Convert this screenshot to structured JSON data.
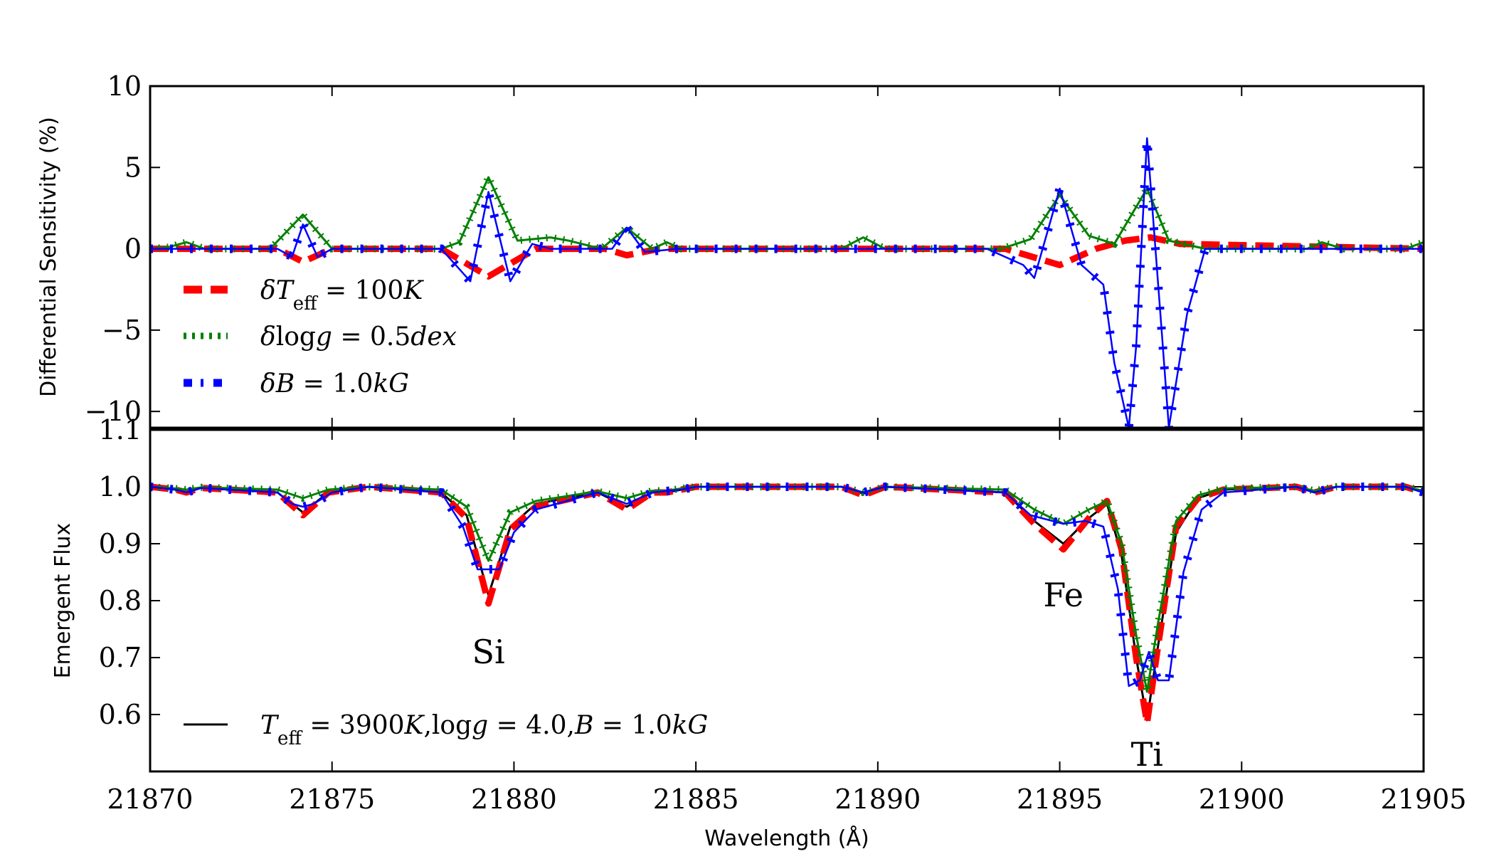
{
  "chart_data": [
    {
      "type": "line",
      "panel": "top",
      "ylabel": "Differential Sensitivity (%)",
      "xlim": [
        21870,
        21905
      ],
      "ylim": [
        -11,
        10
      ],
      "yticks": [
        10,
        5,
        0,
        -5,
        -10
      ],
      "yticklabels": [
        "10",
        "5",
        "0",
        "−5",
        "−10"
      ],
      "legend_position": "lower-left",
      "series": [
        {
          "name": "δT_eff = 100K",
          "label_parts": [
            "δ",
            "T",
            "eff",
            " = 100",
            "K"
          ],
          "color": "#ff0000",
          "style": "dashed-thick",
          "x": [
            21870,
            21873.5,
            21874.2,
            21875,
            21878,
            21879.3,
            21880.6,
            21882.5,
            21883.1,
            21884,
            21893.5,
            21895,
            21896,
            21896.8,
            21897.5,
            21898.3,
            21905
          ],
          "y": [
            0,
            0,
            -0.8,
            0,
            0,
            -1.7,
            0,
            0,
            -0.4,
            0,
            0,
            -1.0,
            0,
            0.5,
            0.7,
            0.3,
            0
          ]
        },
        {
          "name": "δlogg = 0.5dex",
          "label_parts": [
            "δ",
            "log",
            "g",
            " = 0.5",
            "dex"
          ],
          "color": "#008000",
          "style": "dotted",
          "x": [
            21870,
            21870.5,
            21871,
            21871.5,
            21873.3,
            21874.2,
            21875,
            21876,
            21878,
            21878.5,
            21879.3,
            21880.1,
            21881,
            21881.5,
            21882.4,
            21883.1,
            21883.8,
            21884.2,
            21884.6,
            21885,
            21889,
            21889.6,
            21890.2,
            21892.5,
            21893.4,
            21894.2,
            21895,
            21895.8,
            21896.5,
            21897.4,
            21898,
            21899,
            21901.8,
            21902.2,
            21902.8,
            21904.5,
            21905
          ],
          "y": [
            0,
            0.1,
            0.4,
            0,
            0,
            2.1,
            0,
            0,
            0,
            0.4,
            4.4,
            0.5,
            0.7,
            0.5,
            0,
            1.3,
            0,
            0.4,
            0,
            0,
            0,
            0.7,
            0,
            0,
            0,
            0.6,
            3.3,
            0.8,
            0.3,
            3.7,
            0.5,
            0,
            0,
            0.4,
            0,
            0,
            0.4
          ]
        },
        {
          "name": "δB = 1.0kG",
          "label_parts": [
            "δ",
            "B",
            " = 1.0",
            "kG"
          ],
          "color": "#0000ff",
          "style": "dash-dot-markers",
          "x": [
            21870,
            21873.5,
            21873.9,
            21874.2,
            21874.6,
            21875,
            21878,
            21878.8,
            21879.3,
            21879.9,
            21880.5,
            21881,
            21882.7,
            21883.1,
            21883.6,
            21884.5,
            21893,
            21894,
            21894.3,
            21895,
            21895.6,
            21896.2,
            21896.5,
            21896.9,
            21897.1,
            21897.4,
            21897.8,
            21898,
            21898.5,
            21899,
            21905
          ],
          "y": [
            0,
            0,
            -0.5,
            1.5,
            -0.5,
            0,
            0,
            -2.0,
            3.5,
            -2.0,
            0.3,
            0,
            0,
            1.3,
            -0.2,
            0,
            0,
            -1.0,
            -1.8,
            3.7,
            -1.0,
            -2.2,
            -7,
            -11,
            -6,
            6.8,
            -5,
            -11,
            -4,
            0,
            0
          ]
        }
      ]
    },
    {
      "type": "line",
      "panel": "bottom",
      "ylabel": "Emergent Flux",
      "xlabel": "Wavelength (Å)",
      "xlim": [
        21870,
        21905
      ],
      "ylim": [
        0.5,
        1.1
      ],
      "xticks": [
        21870,
        21875,
        21880,
        21885,
        21890,
        21895,
        21900,
        21905
      ],
      "xticklabels": [
        "21870",
        "21875",
        "21880",
        "21885",
        "21890",
        "21895",
        "21900",
        "21905"
      ],
      "yticks": [
        1.1,
        1.0,
        0.9,
        0.8,
        0.7,
        0.6
      ],
      "yticklabels": [
        "1.1",
        "1.0",
        "0.9",
        "0.8",
        "0.7",
        "0.6"
      ],
      "legend_position": "lower-left",
      "annotations": [
        {
          "text": "Si",
          "x": 21879.3,
          "y": 0.69
        },
        {
          "text": "Fe",
          "x": 21895.1,
          "y": 0.79
        },
        {
          "text": "Ti",
          "x": 21897.4,
          "y": 0.51
        }
      ],
      "series": [
        {
          "name": "T_eff = 3900K, logg = 4.0, B = 1.0kG",
          "label_parts": [
            "T",
            "eff",
            " = 3900",
            "K",
            ",log",
            "g",
            " = 4.0,",
            "B",
            " = 1.0",
            "kG"
          ],
          "color": "#000000",
          "style": "solid",
          "x": [
            21870,
            21870.7,
            21871,
            21871.4,
            21873.5,
            21874.2,
            21874.9,
            21876,
            21878,
            21878.7,
            21879.3,
            21879.9,
            21880.6,
            21882.3,
            21883.1,
            21883.8,
            21884.2,
            21884.6,
            21885,
            21889,
            21889.6,
            21890.2,
            21893.5,
            21894.3,
            21895.1,
            21895.8,
            21896.3,
            21896.7,
            21897.1,
            21897.4,
            21897.7,
            21898.2,
            21898.8,
            21899.5,
            21901.5,
            21902,
            21902.6,
            21904.5,
            21905
          ],
          "y": [
            1.0,
            0.995,
            0.99,
            0.998,
            0.99,
            0.955,
            0.99,
            1.0,
            0.99,
            0.95,
            0.81,
            0.93,
            0.97,
            0.99,
            0.965,
            0.99,
            0.99,
            0.995,
            1.0,
            1.0,
            0.988,
            1.0,
            0.99,
            0.94,
            0.9,
            0.945,
            0.97,
            0.88,
            0.7,
            0.59,
            0.72,
            0.92,
            0.98,
            0.995,
            1.0,
            0.99,
            1.0,
            1.0,
            0.99
          ]
        },
        {
          "name": "δT_eff = 100K",
          "color": "#ff0000",
          "style": "dashed-thick",
          "x": [
            21870,
            21870.7,
            21871,
            21871.4,
            21873.5,
            21874.2,
            21874.9,
            21876,
            21878,
            21878.7,
            21879.3,
            21879.9,
            21880.6,
            21882.3,
            21883.1,
            21883.8,
            21884.2,
            21884.6,
            21885,
            21889,
            21889.6,
            21890.2,
            21893.5,
            21894.3,
            21895.1,
            21895.8,
            21896.3,
            21896.7,
            21897.1,
            21897.4,
            21897.7,
            21898.2,
            21898.8,
            21899.5,
            21901.5,
            21902,
            21902.6,
            21904.5,
            21905
          ],
          "y": [
            1.0,
            0.995,
            0.99,
            0.998,
            0.99,
            0.95,
            0.99,
            1.0,
            0.99,
            0.945,
            0.795,
            0.925,
            0.965,
            0.99,
            0.96,
            0.99,
            0.99,
            0.995,
            1.0,
            1.0,
            0.985,
            1.0,
            0.99,
            0.935,
            0.89,
            0.945,
            0.975,
            0.89,
            0.7,
            0.585,
            0.72,
            0.93,
            0.98,
            0.995,
            1.0,
            0.99,
            1.0,
            1.0,
            0.99
          ]
        },
        {
          "name": "δlogg = 0.5dex",
          "color": "#008000",
          "style": "dotted",
          "x": [
            21870,
            21870.7,
            21871,
            21871.4,
            21873.5,
            21874.2,
            21874.9,
            21876,
            21878,
            21878.7,
            21879.3,
            21879.9,
            21880.6,
            21882.3,
            21883.1,
            21883.8,
            21884.2,
            21884.6,
            21885,
            21889,
            21889.6,
            21890.2,
            21893.5,
            21894.3,
            21895.1,
            21895.8,
            21896.3,
            21896.7,
            21897.1,
            21897.4,
            21897.7,
            21898.2,
            21898.8,
            21899.5,
            21901.5,
            21902,
            21902.6,
            21904.5,
            21905
          ],
          "y": [
            1.0,
            0.997,
            0.995,
            0.999,
            0.995,
            0.98,
            0.995,
            1.0,
            0.995,
            0.965,
            0.87,
            0.955,
            0.975,
            0.992,
            0.98,
            0.993,
            0.993,
            0.997,
            1.0,
            1.0,
            0.99,
            1.0,
            0.995,
            0.96,
            0.935,
            0.96,
            0.975,
            0.9,
            0.74,
            0.64,
            0.76,
            0.94,
            0.985,
            0.997,
            1.0,
            0.993,
            1.0,
            1.0,
            0.993
          ]
        },
        {
          "name": "δB = 1.0kG",
          "color": "#0000ff",
          "style": "dash-dot-markers",
          "x": [
            21870,
            21870.7,
            21871,
            21871.4,
            21873.5,
            21873.9,
            21874.2,
            21874.5,
            21875,
            21876,
            21878,
            21878.6,
            21879.0,
            21879.6,
            21880.0,
            21880.6,
            21882.3,
            21883.1,
            21883.8,
            21884.6,
            21885,
            21889,
            21889.6,
            21890.2,
            21893.5,
            21894.2,
            21895.1,
            21895.7,
            21896.2,
            21896.6,
            21896.9,
            21897.2,
            21897.45,
            21897.7,
            21898.0,
            21898.4,
            21898.9,
            21899.5,
            21901.5,
            21902,
            21902.6,
            21904.5,
            21905
          ],
          "y": [
            1.0,
            0.995,
            0.99,
            0.998,
            0.99,
            0.97,
            0.965,
            0.97,
            0.99,
            1.0,
            0.99,
            0.93,
            0.855,
            0.855,
            0.92,
            0.96,
            0.99,
            0.97,
            0.99,
            0.995,
            1.0,
            1.0,
            0.99,
            1.0,
            0.99,
            0.95,
            0.935,
            0.94,
            0.93,
            0.82,
            0.65,
            0.66,
            0.71,
            0.66,
            0.66,
            0.85,
            0.96,
            0.99,
            1.0,
            0.99,
            1.0,
            1.0,
            0.99
          ]
        }
      ]
    }
  ]
}
